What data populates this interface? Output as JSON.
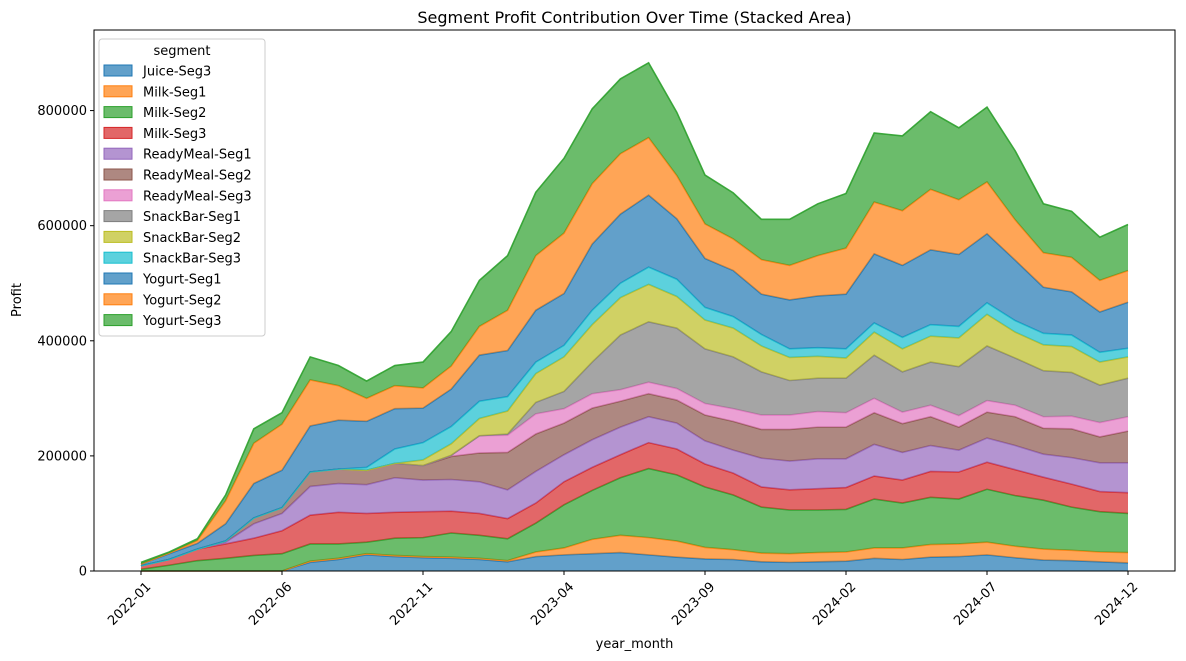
{
  "chart_data": {
    "type": "area",
    "stacked": true,
    "title": "Segment Profit Contribution Over Time (Stacked Area)",
    "xlabel": "year_month",
    "ylabel": "Profit",
    "ylim": [
      0,
      940000
    ],
    "yticks": [
      0,
      200000,
      400000,
      600000,
      800000
    ],
    "xtick_labels": [
      "2022-01",
      "2022-06",
      "2022-11",
      "2023-04",
      "2023-09",
      "2024-02",
      "2024-07",
      "2024-12"
    ],
    "legend_title": "segment",
    "legend_position": "upper-left",
    "grid": false,
    "x": [
      "2022-01",
      "2022-02",
      "2022-03",
      "2022-04",
      "2022-05",
      "2022-06",
      "2022-07",
      "2022-08",
      "2022-09",
      "2022-10",
      "2022-11",
      "2022-12",
      "2023-01",
      "2023-02",
      "2023-03",
      "2023-04",
      "2023-05",
      "2023-06",
      "2023-07",
      "2023-08",
      "2023-09",
      "2023-10",
      "2023-11",
      "2023-12",
      "2024-01",
      "2024-02",
      "2024-03",
      "2024-04",
      "2024-05",
      "2024-06",
      "2024-07",
      "2024-08",
      "2024-09",
      "2024-10",
      "2024-11",
      "2024-12"
    ],
    "series": [
      {
        "name": "Juice-Seg3",
        "color": "#1f77b4",
        "values": [
          0,
          0,
          0,
          0,
          0,
          0,
          15000,
          20000,
          28000,
          25000,
          23000,
          22000,
          20000,
          16000,
          25000,
          28000,
          30000,
          32000,
          28000,
          24000,
          21000,
          20000,
          16000,
          15000,
          16000,
          17000,
          22000,
          20000,
          24000,
          25000,
          28000,
          23000,
          19000,
          18000,
          16000,
          14000
        ]
      },
      {
        "name": "Milk-Seg1",
        "color": "#ff7f0e",
        "values": [
          0,
          0,
          0,
          0,
          0,
          0,
          2000,
          2000,
          2000,
          2000,
          2000,
          2000,
          2000,
          2000,
          8000,
          12000,
          25000,
          30000,
          30000,
          28000,
          20000,
          17000,
          15000,
          15000,
          16000,
          16000,
          18000,
          20000,
          22000,
          22000,
          22000,
          20000,
          19000,
          18000,
          17000,
          18000
        ]
      },
      {
        "name": "Milk-Seg2",
        "color": "#2ca02c",
        "values": [
          3000,
          10000,
          18000,
          22000,
          27000,
          30000,
          30000,
          25000,
          20000,
          30000,
          33000,
          42000,
          40000,
          38000,
          50000,
          75000,
          85000,
          100000,
          120000,
          115000,
          105000,
          95000,
          80000,
          76000,
          74000,
          74000,
          85000,
          78000,
          82000,
          78000,
          92000,
          88000,
          85000,
          75000,
          70000,
          68000
        ]
      },
      {
        "name": "Milk-Seg3",
        "color": "#d62728",
        "values": [
          6000,
          10000,
          20000,
          25000,
          30000,
          40000,
          50000,
          55000,
          50000,
          45000,
          45000,
          38000,
          38000,
          35000,
          35000,
          40000,
          40000,
          40000,
          45000,
          45000,
          40000,
          38000,
          35000,
          35000,
          37000,
          38000,
          40000,
          40000,
          45000,
          47000,
          47000,
          45000,
          40000,
          40000,
          35000,
          36000
        ]
      },
      {
        "name": "ReadyMeal-Seg1",
        "color": "#9467bd",
        "values": [
          0,
          0,
          0,
          3000,
          25000,
          30000,
          50000,
          50000,
          50000,
          60000,
          55000,
          55000,
          55000,
          50000,
          55000,
          47000,
          48000,
          48000,
          45000,
          45000,
          40000,
          40000,
          50000,
          50000,
          52000,
          50000,
          55000,
          48000,
          45000,
          38000,
          42000,
          42000,
          40000,
          46000,
          50000,
          52000
        ]
      },
      {
        "name": "ReadyMeal-Seg2",
        "color": "#8c564b",
        "values": [
          0,
          0,
          0,
          2000,
          10000,
          10000,
          25000,
          25000,
          25000,
          25000,
          25000,
          40000,
          50000,
          65000,
          65000,
          55000,
          55000,
          45000,
          40000,
          40000,
          45000,
          50000,
          50000,
          55000,
          55000,
          55000,
          55000,
          50000,
          50000,
          40000,
          45000,
          50000,
          45000,
          50000,
          45000,
          55000
        ]
      },
      {
        "name": "ReadyMeal-Seg3",
        "color": "#e377c2",
        "values": [
          0,
          0,
          0,
          0,
          0,
          0,
          0,
          0,
          0,
          0,
          0,
          2000,
          30000,
          30000,
          35000,
          25000,
          25000,
          20000,
          20000,
          20000,
          20000,
          22000,
          25000,
          25000,
          27000,
          25000,
          25000,
          20000,
          20000,
          20000,
          20000,
          20000,
          20000,
          22000,
          25000,
          25000
        ]
      },
      {
        "name": "SnackBar-Seg1",
        "color": "#7f7f7f",
        "values": [
          0,
          0,
          0,
          0,
          0,
          0,
          0,
          0,
          0,
          0,
          0,
          0,
          0,
          2000,
          20000,
          30000,
          55000,
          95000,
          105000,
          105000,
          95000,
          90000,
          75000,
          60000,
          58000,
          60000,
          75000,
          70000,
          75000,
          85000,
          95000,
          82000,
          80000,
          76000,
          65000,
          67000
        ]
      },
      {
        "name": "SnackBar-Seg2",
        "color": "#bcbd22",
        "values": [
          0,
          0,
          0,
          0,
          0,
          0,
          0,
          0,
          0,
          0,
          10000,
          20000,
          30000,
          40000,
          50000,
          60000,
          65000,
          65000,
          65000,
          55000,
          50000,
          50000,
          45000,
          40000,
          38000,
          35000,
          40000,
          40000,
          45000,
          50000,
          55000,
          45000,
          45000,
          45000,
          40000,
          37000
        ]
      },
      {
        "name": "SnackBar-Seg3",
        "color": "#17becf",
        "values": [
          0,
          0,
          0,
          0,
          0,
          0,
          0,
          0,
          5000,
          25000,
          30000,
          30000,
          30000,
          25000,
          20000,
          20000,
          25000,
          25000,
          30000,
          30000,
          22000,
          20000,
          20000,
          15000,
          15000,
          16000,
          16000,
          20000,
          20000,
          20000,
          20000,
          20000,
          20000,
          20000,
          17000,
          15000
        ]
      },
      {
        "name": "Yogurt-Seg1",
        "color": "#1f77b4",
        "values": [
          3000,
          10000,
          10000,
          30000,
          60000,
          65000,
          80000,
          85000,
          80000,
          70000,
          60000,
          65000,
          80000,
          80000,
          90000,
          90000,
          115000,
          120000,
          125000,
          105000,
          85000,
          80000,
          70000,
          85000,
          90000,
          95000,
          120000,
          125000,
          130000,
          125000,
          120000,
          105000,
          80000,
          75000,
          70000,
          80000
        ]
      },
      {
        "name": "Yogurt-Seg2",
        "color": "#ff7f0e",
        "values": [
          0,
          1000,
          5000,
          40000,
          70000,
          80000,
          80000,
          60000,
          40000,
          40000,
          35000,
          40000,
          50000,
          70000,
          95000,
          105000,
          105000,
          105000,
          100000,
          75000,
          60000,
          55000,
          60000,
          60000,
          70000,
          80000,
          90000,
          95000,
          105000,
          95000,
          90000,
          70000,
          60000,
          60000,
          55000,
          55000
        ]
      },
      {
        "name": "Yogurt-Seg3",
        "color": "#2ca02c",
        "values": [
          3000,
          2000,
          3000,
          10000,
          25000,
          20000,
          40000,
          35000,
          30000,
          35000,
          45000,
          60000,
          80000,
          95000,
          110000,
          130000,
          130000,
          130000,
          130000,
          110000,
          85000,
          80000,
          70000,
          80000,
          90000,
          95000,
          120000,
          130000,
          135000,
          125000,
          130000,
          120000,
          85000,
          80000,
          75000,
          80000
        ]
      }
    ]
  }
}
